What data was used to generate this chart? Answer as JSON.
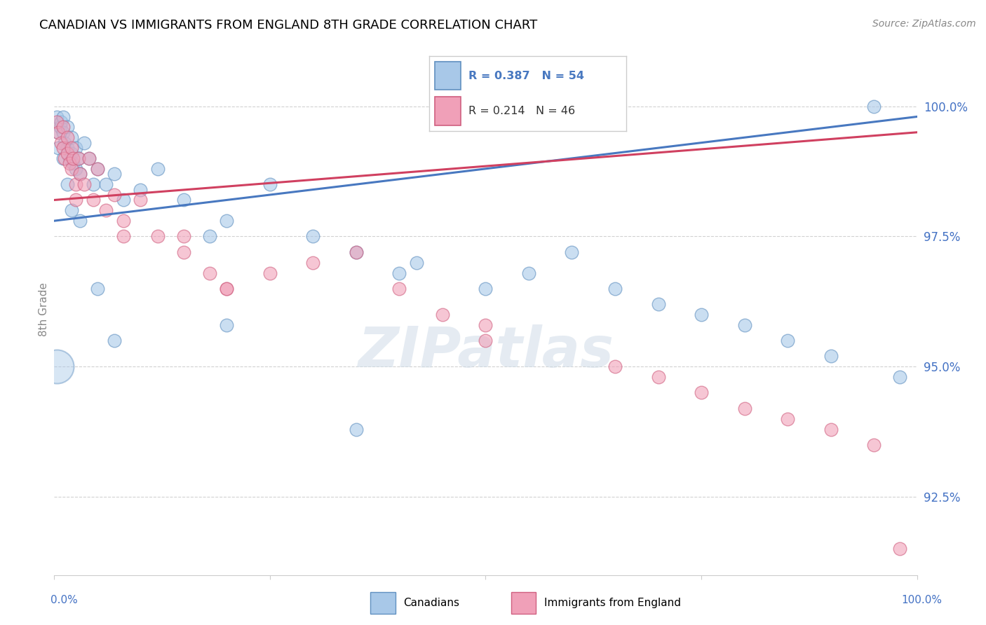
{
  "title": "CANADIAN VS IMMIGRANTS FROM ENGLAND 8TH GRADE CORRELATION CHART",
  "source": "Source: ZipAtlas.com",
  "ylabel": "8th Grade",
  "ylim": [
    91.0,
    101.2
  ],
  "xlim": [
    0.0,
    100.0
  ],
  "yticks": [
    92.5,
    95.0,
    97.5,
    100.0
  ],
  "ytick_labels": [
    "92.5%",
    "95.0%",
    "97.5%",
    "100.0%"
  ],
  "blue_label": "Canadians",
  "pink_label": "Immigrants from England",
  "legend_r_blue": "R = 0.387",
  "legend_n_blue": "N = 54",
  "legend_r_pink": "R = 0.214",
  "legend_n_pink": "N = 46",
  "blue_color": "#a8c8e8",
  "pink_color": "#f0a0b8",
  "blue_edge_color": "#6090c0",
  "pink_edge_color": "#d06080",
  "blue_line_color": "#4878c0",
  "pink_line_color": "#d04060",
  "watermark_text": "ZIPatlas",
  "blue_x": [
    0.3,
    0.5,
    0.7,
    0.8,
    1.0,
    1.0,
    1.2,
    1.5,
    1.5,
    1.8,
    2.0,
    2.0,
    2.2,
    2.5,
    2.5,
    2.8,
    3.0,
    3.5,
    4.0,
    4.5,
    5.0,
    6.0,
    7.0,
    8.0,
    10.0,
    12.0,
    15.0,
    18.0,
    20.0,
    25.0,
    30.0,
    35.0,
    40.0,
    42.0,
    50.0,
    55.0,
    60.0,
    65.0,
    70.0,
    75.0,
    80.0,
    85.0,
    90.0,
    95.0,
    98.0,
    0.5,
    1.0,
    1.5,
    2.0,
    3.0,
    5.0,
    7.0,
    20.0,
    35.0
  ],
  "blue_y": [
    99.8,
    99.5,
    99.6,
    99.7,
    99.8,
    99.5,
    99.3,
    99.6,
    99.2,
    99.0,
    99.4,
    99.1,
    98.9,
    99.2,
    98.8,
    99.0,
    98.7,
    99.3,
    99.0,
    98.5,
    98.8,
    98.5,
    98.7,
    98.2,
    98.4,
    98.8,
    98.2,
    97.5,
    97.8,
    98.5,
    97.5,
    97.2,
    96.8,
    97.0,
    96.5,
    96.8,
    97.2,
    96.5,
    96.2,
    96.0,
    95.8,
    95.5,
    95.2,
    100.0,
    94.8,
    99.2,
    99.0,
    98.5,
    98.0,
    97.8,
    96.5,
    95.5,
    95.8,
    93.8
  ],
  "blue_y_large": [
    95.0
  ],
  "blue_x_large": [
    0.3
  ],
  "pink_x": [
    0.3,
    0.5,
    0.8,
    1.0,
    1.0,
    1.2,
    1.5,
    1.5,
    1.8,
    2.0,
    2.0,
    2.2,
    2.5,
    2.5,
    2.8,
    3.0,
    3.5,
    4.0,
    4.5,
    5.0,
    6.0,
    7.0,
    8.0,
    10.0,
    12.0,
    15.0,
    18.0,
    20.0,
    25.0,
    30.0,
    35.0,
    40.0,
    45.0,
    50.0,
    8.0,
    15.0,
    20.0,
    50.0,
    65.0,
    70.0,
    75.0,
    80.0,
    85.0,
    90.0,
    95.0,
    98.0
  ],
  "pink_y": [
    99.7,
    99.5,
    99.3,
    99.6,
    99.2,
    99.0,
    99.4,
    99.1,
    98.9,
    99.2,
    98.8,
    99.0,
    98.5,
    98.2,
    99.0,
    98.7,
    98.5,
    99.0,
    98.2,
    98.8,
    98.0,
    98.3,
    97.5,
    98.2,
    97.5,
    97.2,
    96.8,
    96.5,
    96.8,
    97.0,
    97.2,
    96.5,
    96.0,
    95.8,
    97.8,
    97.5,
    96.5,
    95.5,
    95.0,
    94.8,
    94.5,
    94.2,
    94.0,
    93.8,
    93.5,
    91.5
  ],
  "reg_blue_x0": 0.0,
  "reg_blue_y0": 97.8,
  "reg_blue_x1": 100.0,
  "reg_blue_y1": 99.8,
  "reg_pink_x0": 0.0,
  "reg_pink_y0": 98.2,
  "reg_pink_x1": 100.0,
  "reg_pink_y1": 99.5
}
